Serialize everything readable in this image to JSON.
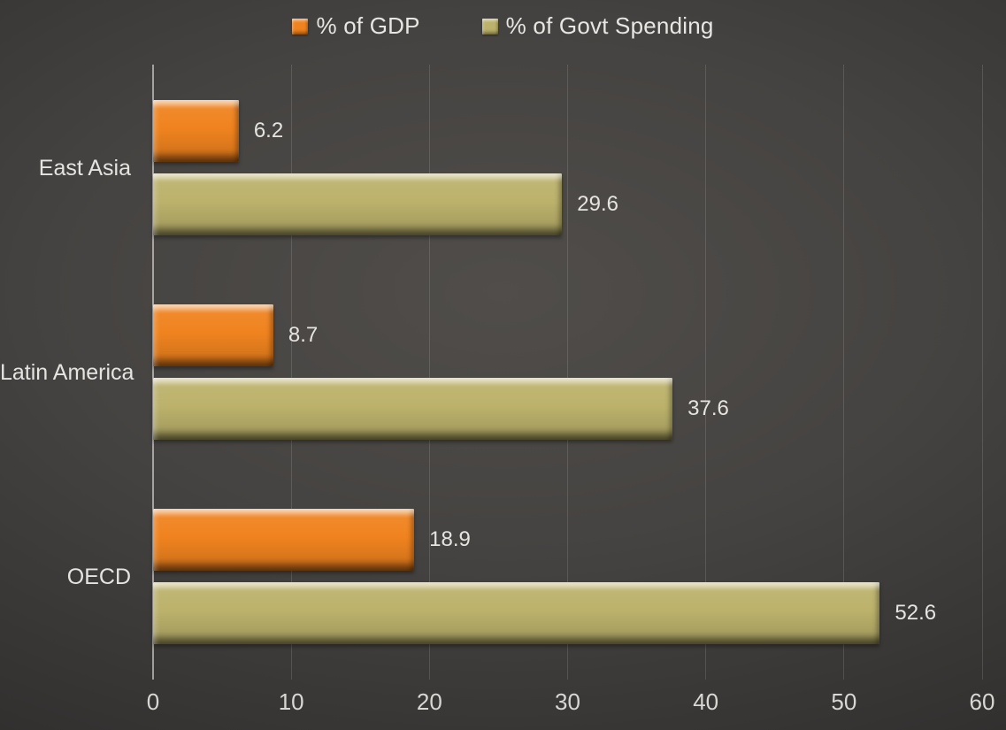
{
  "legend": {
    "items": [
      {
        "label": "% of GDP",
        "color": "#f0831f"
      },
      {
        "label": "% of Govt Spending",
        "color": "#bcb26c"
      }
    ]
  },
  "chart_data": {
    "type": "bar",
    "orientation": "horizontal",
    "title": "",
    "xlabel": "",
    "ylabel": "",
    "categories": [
      "East Asia",
      "Latin America",
      "OECD"
    ],
    "series": [
      {
        "name": "% of GDP",
        "color": "#f0831f",
        "values": [
          6.2,
          8.7,
          18.9
        ]
      },
      {
        "name": "% of Govt Spending",
        "color": "#bcb26c",
        "values": [
          29.6,
          37.6,
          52.6
        ]
      }
    ],
    "x_ticks": [
      0,
      10,
      20,
      30,
      40,
      50,
      60
    ],
    "xlim": [
      0,
      60
    ],
    "grid": "vertical",
    "data_labels": true,
    "legend_position": "top-center",
    "colors": {
      "background_center": "#4d4a47",
      "background_edge": "#262524",
      "text": "#e6e4e1",
      "tick_text": "#d9d7d4",
      "gridline": "rgba(255,255,255,0.13)",
      "axis_line": "rgba(245,243,240,0.55)"
    }
  }
}
